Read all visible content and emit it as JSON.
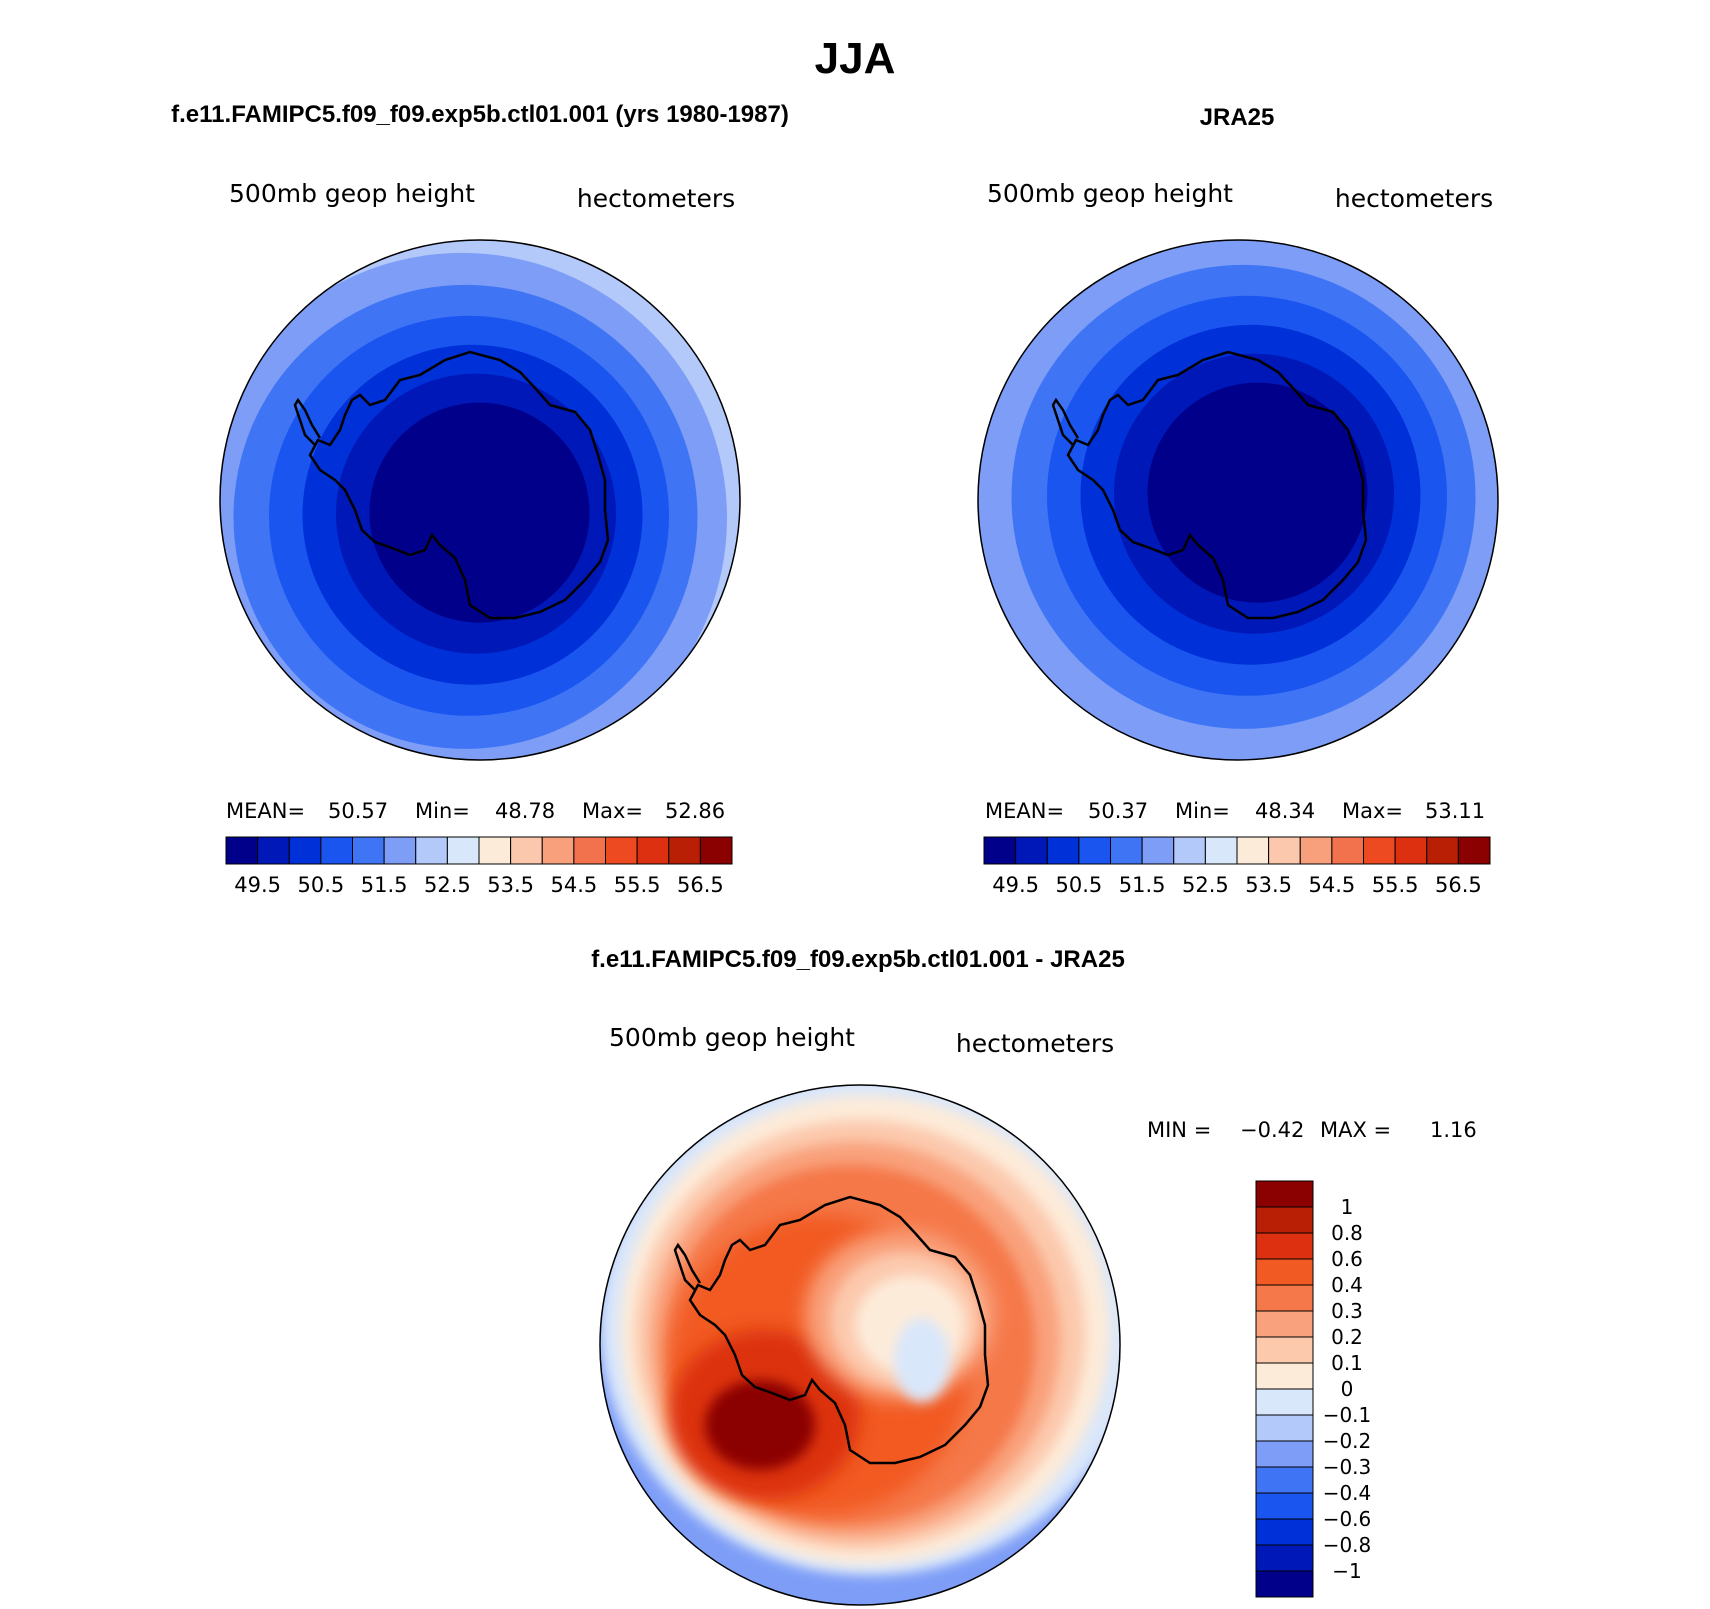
{
  "page_title": "JJA",
  "panels": [
    {
      "title": "f.e11.FAMIPC5.f09_f09.exp5b.ctl01.001 (yrs 1980-1987)",
      "variable": "500mb  geop  height",
      "units": "hectometers",
      "stats": {
        "mean_label": "MEAN=",
        "mean": "50.57",
        "min_label": "Min=",
        "min": "48.78",
        "max_label": "Max=",
        "max": "52.86"
      }
    },
    {
      "title": "JRA25",
      "variable": "500mb  geop  height",
      "units": "hectometers",
      "stats": {
        "mean_label": "MEAN=",
        "mean": "50.37",
        "min_label": "Min=",
        "min": "48.34",
        "max_label": "Max=",
        "max": "53.11"
      }
    }
  ],
  "diff_panel": {
    "title": "f.e11.FAMIPC5.f09_f09.exp5b.ctl01.001 - JRA25",
    "variable": "500mb  geop  height",
    "units": "hectometers",
    "stats": {
      "min_label": "MIN =",
      "min": "−0.42",
      "max_label": "MAX =",
      "max": "1.16"
    }
  },
  "colorbar_horizontal": {
    "colors": [
      "#00008b",
      "#0018b8",
      "#0030d8",
      "#1a55f0",
      "#3f75f5",
      "#7d9df7",
      "#b3c9fa",
      "#d9e7fb",
      "#fdebd9",
      "#fcc8ad",
      "#f89f7c",
      "#f3724e",
      "#ed4a22",
      "#dc3010",
      "#b81f05",
      "#8b0000"
    ],
    "labels": [
      "49.5",
      "50.5",
      "51.5",
      "52.5",
      "53.5",
      "54.5",
      "55.5",
      "56.5"
    ]
  },
  "colorbar_vertical": {
    "colors_top_to_bottom": [
      "#8b0000",
      "#b81f05",
      "#dc3010",
      "#f25a24",
      "#f5784a",
      "#f9a17c",
      "#fcc9ad",
      "#fdebd9",
      "#d9e7fb",
      "#b3c9fa",
      "#7d9df7",
      "#3f75f5",
      "#1a55f0",
      "#0030d8",
      "#0018b8",
      "#00008b"
    ],
    "labels": [
      "1",
      "0.8",
      "0.6",
      "0.4",
      "0.3",
      "0.2",
      "0.1",
      "0",
      "−0.1",
      "−0.2",
      "−0.3",
      "−0.4",
      "−0.6",
      "−0.8",
      "−1"
    ]
  },
  "map_colors": {
    "mean_fields": [
      "#d9e7fb",
      "#b3c9fa",
      "#7d9df7",
      "#3f75f5",
      "#1a55f0",
      "#0030d8",
      "#0018b8",
      "#00008b"
    ],
    "diff_field": [
      "#d9e7fb",
      "#fdebd9",
      "#fcc9ad",
      "#f9a17c",
      "#f5784a",
      "#f25a24",
      "#dc3010",
      "#8b0000"
    ]
  }
}
